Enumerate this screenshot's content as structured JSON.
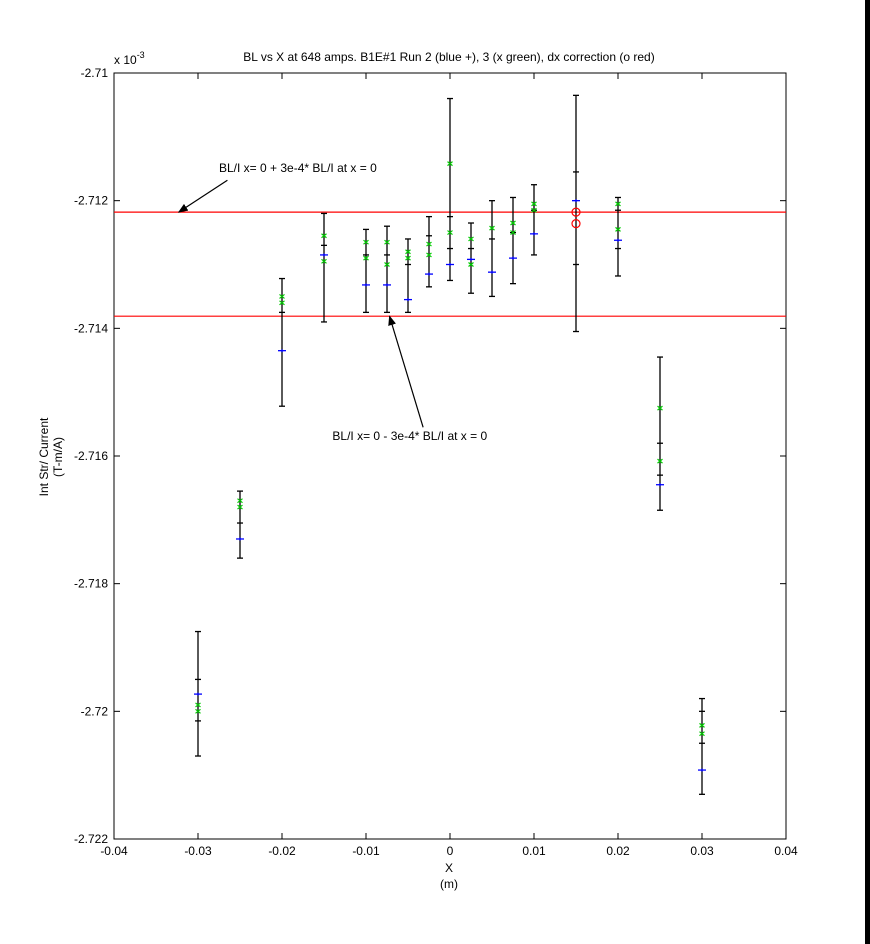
{
  "chart_data": {
    "type": "scatter",
    "title": "BL vs X at 648 amps.  B1E#1 Run 2 (blue +), 3 (x green), dx correction (o red)",
    "xlabel": "X",
    "xlabel_unit": "(m)",
    "ylabel": "Int Str/ Current",
    "ylabel_unit": "(T-m/A)",
    "exponent_label": "x 10",
    "exponent_power": "-3",
    "xlim": [
      -0.04,
      0.04
    ],
    "ylim": [
      -2.722,
      -2.71
    ],
    "x_ticks": [
      -0.04,
      -0.03,
      -0.02,
      -0.01,
      0,
      0.01,
      0.02,
      0.03,
      0.04
    ],
    "x_tick_labels": [
      "-0.04",
      "-0.03",
      "-0.02",
      "-0.01",
      "0",
      "0.01",
      "0.02",
      "0.03",
      "0.04"
    ],
    "y_ticks": [
      -2.71,
      -2.712,
      -2.714,
      -2.716,
      -2.718,
      -2.72,
      -2.722
    ],
    "y_tick_labels": [
      "-2.71",
      "-2.712",
      "-2.714",
      "-2.716",
      "-2.718",
      "-2.72",
      "-2.722"
    ],
    "colors": {
      "blue": "#0000ff",
      "green": "#00cc00",
      "red": "#ff0000",
      "errorbar": "#000000"
    },
    "series": [
      {
        "marker": "plus",
        "color": "#0000ff",
        "points": [
          [
            -0.03,
            -2.71973
          ],
          [
            -0.025,
            -2.7173
          ],
          [
            -0.02,
            -2.71435
          ],
          [
            -0.015,
            -2.71285
          ],
          [
            -0.01,
            -2.71332
          ],
          [
            -0.0075,
            -2.71332
          ],
          [
            -0.005,
            -2.71355
          ],
          [
            -0.0025,
            -2.71315
          ],
          [
            0,
            -2.713
          ],
          [
            0.0025,
            -2.71292
          ],
          [
            0.005,
            -2.71312
          ],
          [
            0.0075,
            -2.7129
          ],
          [
            0.01,
            -2.71252
          ],
          [
            0.015,
            -2.712
          ],
          [
            0.02,
            -2.71262
          ],
          [
            0.025,
            -2.71645
          ],
          [
            0.03,
            -2.72092
          ]
        ]
      },
      {
        "marker": "x",
        "color": "#00cc00",
        "points": [
          [
            -0.03,
            -2.7199
          ],
          [
            -0.03,
            -2.72
          ],
          [
            -0.025,
            -2.7167
          ],
          [
            -0.025,
            -2.7168
          ],
          [
            -0.02,
            -2.7135
          ],
          [
            -0.02,
            -2.7136
          ],
          [
            -0.015,
            -2.71255
          ],
          [
            -0.015,
            -2.71295
          ],
          [
            -0.01,
            -2.71265
          ],
          [
            -0.01,
            -2.7129
          ],
          [
            -0.0075,
            -2.71265
          ],
          [
            -0.0075,
            -2.713
          ],
          [
            -0.005,
            -2.7128
          ],
          [
            -0.005,
            -2.7129
          ],
          [
            -0.0025,
            -2.71268
          ],
          [
            -0.0025,
            -2.71285
          ],
          [
            0,
            -2.71142
          ],
          [
            0,
            -2.7125
          ],
          [
            0.0025,
            -2.7126
          ],
          [
            0.0025,
            -2.713
          ],
          [
            0.005,
            -2.71243
          ],
          [
            0.0075,
            -2.71235
          ],
          [
            0.0075,
            -2.7125
          ],
          [
            0.01,
            -2.71205
          ],
          [
            0.01,
            -2.71215
          ],
          [
            0.02,
            -2.71205
          ],
          [
            0.02,
            -2.71245
          ],
          [
            0.025,
            -2.71525
          ],
          [
            0.025,
            -2.71608
          ],
          [
            0.03,
            -2.72022
          ],
          [
            0.03,
            -2.72035
          ]
        ]
      },
      {
        "marker": "circle",
        "color": "#ff0000",
        "points": [
          [
            0.015,
            -2.71218
          ],
          [
            0.015,
            -2.71236
          ]
        ]
      }
    ],
    "error_bars": [
      {
        "x": -0.03,
        "low": -2.7207,
        "high": -2.71875
      },
      {
        "x": -0.025,
        "low": -2.7176,
        "high": -2.71655
      },
      {
        "x": -0.02,
        "low": -2.71522,
        "high": -2.71322
      },
      {
        "x": -0.015,
        "low": -2.7139,
        "high": -2.7122
      },
      {
        "x": -0.01,
        "low": -2.71375,
        "high": -2.71245
      },
      {
        "x": -0.0075,
        "low": -2.71375,
        "high": -2.7124
      },
      {
        "x": -0.005,
        "low": -2.71375,
        "high": -2.7126
      },
      {
        "x": -0.0025,
        "low": -2.71335,
        "high": -2.71225
      },
      {
        "x": 0,
        "low": -2.71325,
        "high": -2.7104
      },
      {
        "x": 0.0025,
        "low": -2.71345,
        "high": -2.71235
      },
      {
        "x": 0.005,
        "low": -2.7135,
        "high": -2.712
      },
      {
        "x": 0.0075,
        "low": -2.7133,
        "high": -2.71195
      },
      {
        "x": 0.01,
        "low": -2.71285,
        "high": -2.71175
      },
      {
        "x": 0.015,
        "low": -2.71405,
        "high": -2.71035
      },
      {
        "x": 0.02,
        "low": -2.71318,
        "high": -2.71195
      },
      {
        "x": 0.025,
        "low": -2.71685,
        "high": -2.71445
      },
      {
        "x": 0.03,
        "low": -2.7213,
        "high": -2.7198
      }
    ],
    "error_ticks": [
      {
        "x": -0.03,
        "y": -2.7195
      },
      {
        "x": -0.03,
        "y": -2.72015
      },
      {
        "x": -0.025,
        "y": -2.71705
      },
      {
        "x": -0.02,
        "y": -2.71375
      },
      {
        "x": -0.015,
        "y": -2.7127
      },
      {
        "x": -0.01,
        "y": -2.71285
      },
      {
        "x": -0.0075,
        "y": -2.71285
      },
      {
        "x": -0.005,
        "y": -2.713
      },
      {
        "x": -0.0025,
        "y": -2.71255
      },
      {
        "x": 0,
        "y": -2.71275
      },
      {
        "x": 0,
        "y": -2.71225
      },
      {
        "x": 0.0025,
        "y": -2.71275
      },
      {
        "x": 0.005,
        "y": -2.7126
      },
      {
        "x": 0.0075,
        "y": -2.7125
      },
      {
        "x": 0.01,
        "y": -2.71215
      },
      {
        "x": 0.015,
        "y": -2.71155
      },
      {
        "x": 0.015,
        "y": -2.713
      },
      {
        "x": 0.02,
        "y": -2.71215
      },
      {
        "x": 0.02,
        "y": -2.71275
      },
      {
        "x": 0.025,
        "y": -2.7158
      },
      {
        "x": 0.025,
        "y": -2.7163
      },
      {
        "x": 0.03,
        "y": -2.72
      },
      {
        "x": 0.03,
        "y": -2.7205
      }
    ],
    "reference_lines": [
      {
        "y": -2.71218,
        "color": "#ff0000"
      },
      {
        "y": -2.71381,
        "color": "#ff0000"
      }
    ],
    "annotations": [
      {
        "text": "BL/I  x= 0  + 3e-4* BL/I  at x = 0",
        "text_x": -0.0275,
        "text_y": -2.71155,
        "arrow_from": [
          -0.0265,
          -2.71168
        ],
        "arrow_to": [
          -0.0323,
          -2.71218
        ]
      },
      {
        "text": "BL/I  x= 0  - 3e-4* BL/I  at x = 0",
        "text_x": -0.014,
        "text_y": -2.71575,
        "arrow_from": [
          -0.0032,
          -2.71555
        ],
        "arrow_to": [
          -0.0072,
          -2.71381
        ]
      }
    ]
  }
}
